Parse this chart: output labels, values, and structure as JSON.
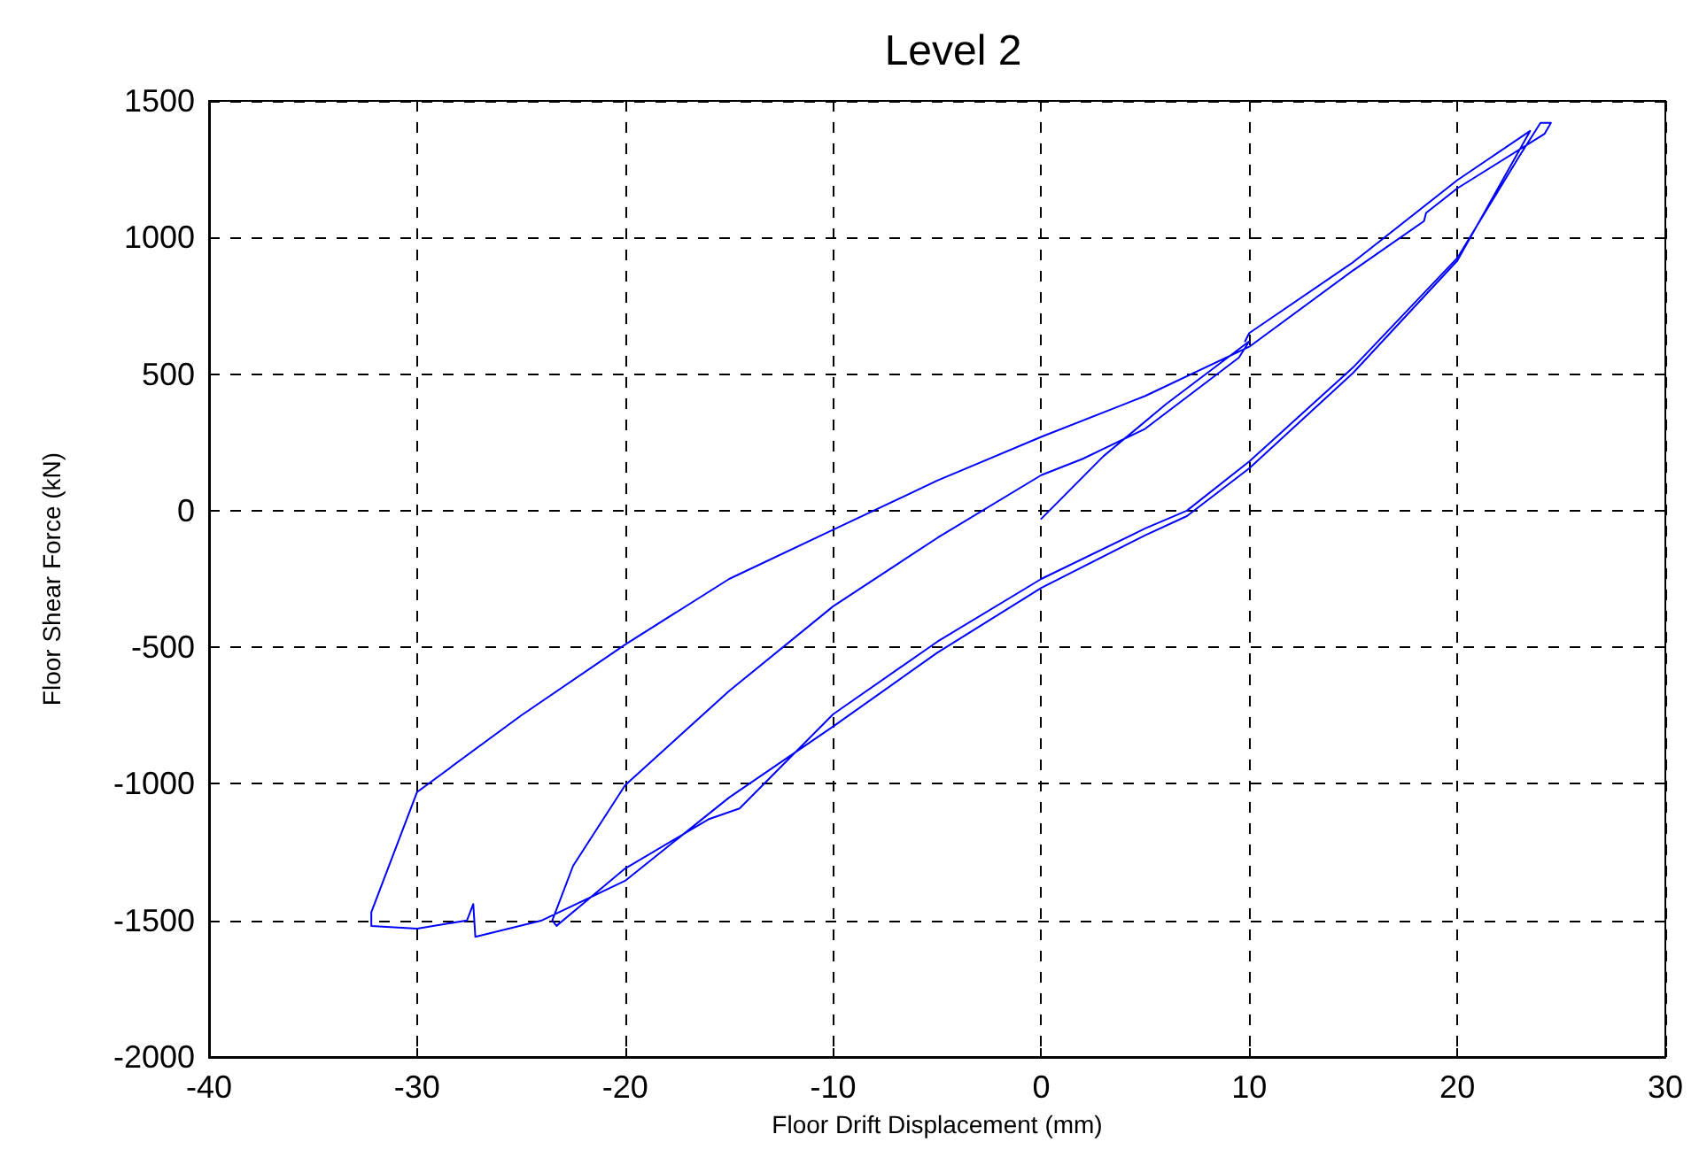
{
  "chart_data": {
    "type": "line",
    "title": "Level 2",
    "xlabel": "Floor Drift Displacement (mm)",
    "ylabel": "Floor Shear Force (kN)",
    "xlim": [
      -40,
      30
    ],
    "xticks": [
      -40,
      -30,
      -20,
      -10,
      0,
      10,
      20,
      30
    ],
    "ylim": [
      -2000,
      1500
    ],
    "yticks": [
      -2000,
      -1500,
      -1000,
      -500,
      0,
      500,
      1000,
      1500
    ],
    "grid": true,
    "marker": "none",
    "line_style": "solid",
    "series": [
      {
        "color": "#0000ff",
        "x": [
          0,
          3,
          6,
          10,
          9.5,
          5,
          2,
          0,
          -5,
          -10,
          -15,
          -20,
          -22.5,
          -23.5,
          -23.3,
          -20,
          -16,
          -14.5,
          -10,
          -5,
          0,
          5,
          7,
          10,
          15,
          20,
          23,
          24,
          24.5,
          24.2,
          20,
          18.5,
          18.4,
          15,
          10,
          5,
          0,
          -5,
          -10,
          -15,
          -20,
          -25,
          -30,
          -32.2,
          -32.2,
          -30,
          -27.6,
          -27.3,
          -27.2,
          -24,
          -20,
          -15,
          -10,
          -5,
          0,
          5,
          7,
          10,
          15,
          20,
          23.5,
          20,
          15,
          10,
          9.8
        ],
        "values": [
          -30,
          200,
          390,
          620,
          560,
          300,
          190,
          130,
          -100,
          -350,
          -660,
          -1005,
          -1300,
          -1500,
          -1520,
          -1310,
          -1130,
          -1090,
          -745,
          -480,
          -250,
          -65,
          0,
          180,
          525,
          925,
          1300,
          1420,
          1420,
          1380,
          1180,
          1090,
          1060,
          880,
          600,
          420,
          270,
          110,
          -70,
          -250,
          -490,
          -750,
          -1030,
          -1470,
          -1520,
          -1530,
          -1500,
          -1440,
          -1560,
          -1500,
          -1355,
          -1050,
          -790,
          -520,
          -283,
          -90,
          -20,
          155,
          505,
          915,
          1390,
          1210,
          910,
          650,
          620
        ]
      }
    ]
  }
}
